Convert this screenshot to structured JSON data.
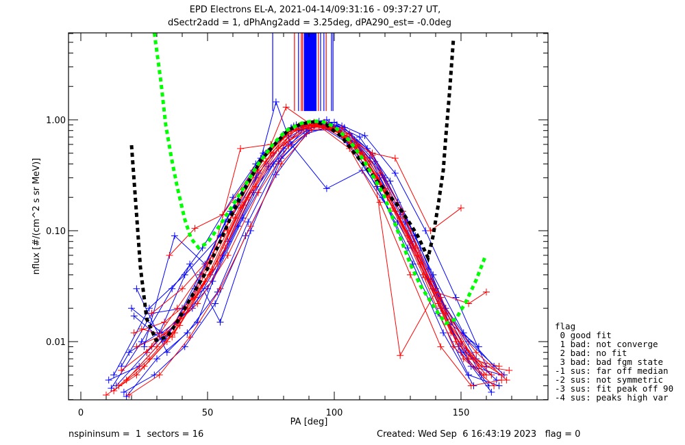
{
  "chart_data": {
    "type": "line",
    "title_line1": "EPD Electrons EL-A, 2021-04-14/09:31:16 - 09:37:27 UT,",
    "title_line2": "dSectr2add = 1, dPhAng2add = 3.25deg, dPA290_est=  -0.0deg",
    "xlabel": "PA [deg]",
    "ylabel": "nflux [#/(cm^2 s sr MeV)]",
    "xlim": [
      -5,
      184.5
    ],
    "ylim": [
      0.003,
      6.1
    ],
    "yscale": "log",
    "x_ticks": [
      0,
      50,
      100,
      150
    ],
    "x_tick_labels": [
      "0",
      "50",
      "100",
      "150"
    ],
    "y_ticks": [
      0.01,
      0.1,
      1.0
    ],
    "y_tick_labels": [
      "0.01",
      "0.10",
      "1.00"
    ],
    "colors": {
      "red": "#ff0000",
      "blue": "#0000ff",
      "green": "#00ff00",
      "black": "#000000"
    },
    "fit_curves": [
      {
        "name": "black-fit",
        "color": "#000000",
        "x": [
          20,
          23.5,
          26,
          29.7,
          34,
          38,
          43,
          49,
          55,
          60,
          66,
          71,
          77,
          82,
          87,
          92,
          97,
          103,
          108,
          114,
          120,
          125,
          130,
          133,
          137,
          139,
          141,
          143,
          144,
          145.5,
          147
        ],
        "y": [
          0.59,
          0.047,
          0.016,
          0.0103,
          0.011,
          0.015,
          0.024,
          0.041,
          0.08,
          0.147,
          0.27,
          0.43,
          0.62,
          0.81,
          0.92,
          0.96,
          0.9,
          0.7,
          0.5,
          0.34,
          0.23,
          0.17,
          0.115,
          0.089,
          0.057,
          0.09,
          0.17,
          0.35,
          0.7,
          1.8,
          5.3
        ]
      },
      {
        "name": "green-fit",
        "color": "#00ff00",
        "x": [
          29,
          31.6,
          33.5,
          35.7,
          38,
          41,
          43.5,
          46.5,
          50,
          54.6,
          60,
          65,
          70,
          76,
          81,
          87,
          91,
          95,
          100,
          106,
          112,
          119.5,
          125,
          130,
          134,
          138,
          141,
          144,
          148,
          152,
          156,
          159.5
        ],
        "y": [
          6.1,
          2.2,
          0.9,
          0.46,
          0.25,
          0.127,
          0.085,
          0.07,
          0.078,
          0.11,
          0.17,
          0.26,
          0.4,
          0.61,
          0.8,
          0.93,
          0.97,
          0.97,
          0.87,
          0.65,
          0.42,
          0.21,
          0.1,
          0.05,
          0.032,
          0.023,
          0.018,
          0.0146,
          0.016,
          0.023,
          0.036,
          0.058
        ]
      }
    ],
    "vertical_spikes": [
      {
        "x": 75.7,
        "color": "#0000ff"
      },
      {
        "x": 84.3,
        "color": "#ff0000"
      },
      {
        "x": 85.9,
        "color": "#0000ff"
      },
      {
        "x": 87.0,
        "color": "#ff0000"
      },
      {
        "x": 87.5,
        "color": "#ff0000"
      },
      {
        "x": 93.7,
        "color": "#ff0000"
      },
      {
        "x": 94.6,
        "color": "#0000ff"
      },
      {
        "x": 95.9,
        "color": "#0000ff"
      },
      {
        "x": 96.8,
        "color": "#ff0000"
      },
      {
        "x": 98.9,
        "color": "#0000ff"
      },
      {
        "x": 99.5,
        "color": "#0000ff"
      }
    ],
    "spike_band": {
      "x_from": 88,
      "x_to": 93,
      "color": "#0000ff",
      "y_bottom": 1.2
    },
    "spectra_blue": [
      {
        "x": [
          11,
          23,
          35,
          47,
          59,
          71,
          83,
          95,
          107,
          119,
          131,
          143,
          155
        ],
        "y": [
          0.0045,
          0.006,
          0.012,
          0.04,
          0.15,
          0.45,
          0.85,
          0.9,
          0.6,
          0.2,
          0.05,
          0.012,
          0.004
        ]
      },
      {
        "x": [
          14,
          26,
          38,
          50,
          62,
          74,
          86,
          98,
          110,
          122,
          134,
          146,
          158
        ],
        "y": [
          0.004,
          0.008,
          0.015,
          0.03,
          0.11,
          0.38,
          0.8,
          0.95,
          0.7,
          0.28,
          0.07,
          0.015,
          0.005
        ]
      },
      {
        "x": [
          17,
          29,
          41,
          53,
          65,
          77,
          89,
          101,
          113,
          125,
          137,
          149,
          161
        ],
        "y": [
          0.0035,
          0.005,
          0.009,
          0.022,
          0.09,
          0.32,
          0.75,
          0.9,
          0.55,
          0.18,
          0.045,
          0.009,
          0.004
        ]
      },
      {
        "x": [
          20,
          32,
          44,
          56,
          68,
          80,
          92,
          104,
          116,
          128,
          140,
          152,
          164
        ],
        "y": [
          0.02,
          0.012,
          0.02,
          0.06,
          0.22,
          0.55,
          0.9,
          0.85,
          0.42,
          0.12,
          0.03,
          0.008,
          0.0045
        ]
      },
      {
        "x": [
          12,
          24,
          36,
          48,
          60,
          72,
          84,
          96,
          108,
          120,
          132,
          144,
          156
        ],
        "y": [
          0.0038,
          0.01,
          0.03,
          0.07,
          0.2,
          0.5,
          0.88,
          0.92,
          0.66,
          0.3,
          0.09,
          0.02,
          0.007
        ]
      },
      {
        "x": [
          16,
          28,
          40,
          52,
          64,
          76,
          88,
          100,
          112,
          124,
          136,
          148,
          160
        ],
        "y": [
          0.006,
          0.018,
          0.02,
          0.035,
          0.13,
          0.4,
          0.82,
          0.95,
          0.72,
          0.33,
          0.1,
          0.025,
          0.006
        ]
      },
      {
        "x": [
          22,
          34,
          46,
          58,
          70,
          82,
          94,
          106,
          118,
          130,
          142,
          154,
          166
        ],
        "y": [
          0.03,
          0.008,
          0.015,
          0.08,
          0.33,
          0.7,
          0.97,
          0.75,
          0.3,
          0.08,
          0.02,
          0.006,
          0.005
        ]
      },
      {
        "x": [
          19,
          31,
          43,
          55,
          67,
          79,
          91,
          103,
          115,
          127,
          139,
          151,
          163
        ],
        "y": [
          0.008,
          0.012,
          0.05,
          0.015,
          0.1,
          0.45,
          0.85,
          0.88,
          0.5,
          0.15,
          0.04,
          0.012,
          0.006
        ]
      },
      {
        "x": [
          25,
          37,
          49,
          61,
          73,
          85,
          97,
          109,
          121,
          133,
          145,
          157
        ],
        "y": [
          0.009,
          0.09,
          0.05,
          0.18,
          0.5,
          0.9,
          1.0,
          0.6,
          0.2,
          0.06,
          0.015,
          0.009
        ]
      },
      {
        "x": [
          13,
          27,
          41,
          55,
          69,
          77,
          83,
          97,
          111,
          125,
          139,
          153,
          167
        ],
        "y": [
          0.005,
          0.02,
          0.04,
          0.09,
          0.3,
          1.45,
          0.6,
          0.24,
          0.35,
          0.12,
          0.03,
          0.01,
          0.005
        ]
      },
      {
        "x": [
          18,
          30,
          42,
          54,
          66,
          78,
          90,
          102,
          114,
          126,
          138,
          150,
          162
        ],
        "y": [
          0.0032,
          0.007,
          0.012,
          0.028,
          0.12,
          0.42,
          0.8,
          0.82,
          0.45,
          0.14,
          0.035,
          0.008,
          0.0035
        ]
      },
      {
        "x": [
          21,
          33,
          45,
          57,
          69,
          81,
          93,
          105,
          117,
          129,
          141,
          153,
          165
        ],
        "y": [
          0.017,
          0.01,
          0.03,
          0.12,
          0.4,
          0.78,
          0.93,
          0.62,
          0.25,
          0.07,
          0.018,
          0.005,
          0.004
        ]
      }
    ],
    "spectra_red": [
      {
        "x": [
          10,
          22,
          34,
          46,
          58,
          70,
          82,
          94,
          106,
          118,
          130,
          142,
          154,
          166
        ],
        "y": [
          0.0033,
          0.005,
          0.01,
          0.03,
          0.1,
          0.35,
          0.78,
          0.88,
          0.55,
          0.18,
          0.04,
          0.009,
          0.004,
          0.0045
        ]
      },
      {
        "x": [
          15,
          27,
          39,
          51,
          63,
          75,
          87,
          99,
          111,
          123,
          135,
          147,
          159
        ],
        "y": [
          0.004,
          0.007,
          0.014,
          0.04,
          0.16,
          0.5,
          0.9,
          0.86,
          0.5,
          0.16,
          0.04,
          0.009,
          0.005
        ]
      },
      {
        "x": [
          21,
          33,
          45,
          57,
          69,
          81,
          93,
          105,
          117,
          129,
          141,
          153,
          165
        ],
        "y": [
          0.012,
          0.015,
          0.025,
          0.07,
          0.25,
          0.62,
          0.92,
          0.72,
          0.3,
          0.09,
          0.022,
          0.007,
          0.006
        ]
      },
      {
        "x": [
          18,
          30,
          42,
          54,
          66,
          78,
          90,
          102,
          114,
          126,
          138,
          150,
          162
        ],
        "y": [
          0.0045,
          0.009,
          0.02,
          0.05,
          0.2,
          0.55,
          0.88,
          0.8,
          0.42,
          0.13,
          0.035,
          0.01,
          0.005
        ]
      },
      {
        "x": [
          24,
          36,
          48,
          60,
          72,
          84,
          96,
          108,
          120,
          132,
          144,
          156,
          168
        ],
        "y": [
          0.013,
          0.011,
          0.04,
          0.14,
          0.45,
          0.85,
          0.95,
          0.6,
          0.24,
          0.07,
          0.018,
          0.008,
          0.0045
        ]
      },
      {
        "x": [
          13,
          25,
          37,
          49,
          61,
          73,
          85,
          97,
          109,
          121,
          133,
          145,
          157
        ],
        "y": [
          0.0036,
          0.006,
          0.012,
          0.035,
          0.13,
          0.42,
          0.82,
          0.9,
          0.58,
          0.22,
          0.06,
          0.015,
          0.006
        ]
      },
      {
        "x": [
          28,
          40,
          52,
          63,
          75,
          81,
          91,
          103,
          115,
          124,
          138,
          150
        ],
        "y": [
          0.018,
          0.03,
          0.06,
          0.55,
          0.6,
          1.3,
          0.9,
          0.75,
          0.5,
          0.45,
          0.1,
          0.16
        ]
      },
      {
        "x": [
          35,
          45,
          56,
          68,
          80,
          92,
          104,
          116,
          126,
          140,
          153,
          160
        ],
        "y": [
          0.06,
          0.105,
          0.14,
          0.35,
          0.7,
          0.95,
          0.68,
          0.3,
          0.0075,
          0.028,
          0.022,
          0.028
        ]
      },
      {
        "x": [
          19,
          31,
          43,
          55,
          67,
          79,
          91,
          103,
          115,
          127,
          139,
          151,
          163
        ],
        "y": [
          0.0033,
          0.005,
          0.011,
          0.03,
          0.11,
          0.4,
          0.82,
          0.84,
          0.48,
          0.15,
          0.03,
          0.007,
          0.004
        ]
      },
      {
        "x": [
          26,
          38,
          50,
          62,
          74,
          86,
          98,
          110,
          122,
          134,
          146,
          158,
          169
        ],
        "y": [
          0.008,
          0.02,
          0.05,
          0.18,
          0.52,
          0.88,
          0.9,
          0.5,
          0.2,
          0.05,
          0.012,
          0.006,
          0.0055
        ]
      },
      {
        "x": [
          16,
          28,
          40,
          52,
          64,
          76,
          88,
          100,
          112,
          124,
          136,
          148,
          160
        ],
        "y": [
          0.0055,
          0.009,
          0.018,
          0.045,
          0.17,
          0.5,
          0.86,
          0.85,
          0.46,
          0.15,
          0.038,
          0.01,
          0.005
        ]
      },
      {
        "x": [
          22,
          34,
          46,
          58,
          70,
          82,
          94,
          106,
          118,
          130,
          142,
          154,
          166
        ],
        "y": [
          0.009,
          0.012,
          0.022,
          0.06,
          0.22,
          0.58,
          0.9,
          0.74,
          0.33,
          0.1,
          0.025,
          0.0075,
          0.005
        ]
      }
    ]
  },
  "legend": {
    "title": "flag",
    "items": [
      " 0 good fit",
      " 1 bad: not converge",
      " 2 bad: no fit",
      " 3 bad: bad fgm state",
      "-1 sus: far off median",
      "-2 sus: not symmetric",
      "-3 sus: fit peak off 90",
      "-4 sus: peaks high var"
    ]
  },
  "footer": {
    "left": "nspininsum =  1  sectors = 16",
    "right": "Created: Wed Sep  6 16:43:19 2023   flag = 0"
  }
}
